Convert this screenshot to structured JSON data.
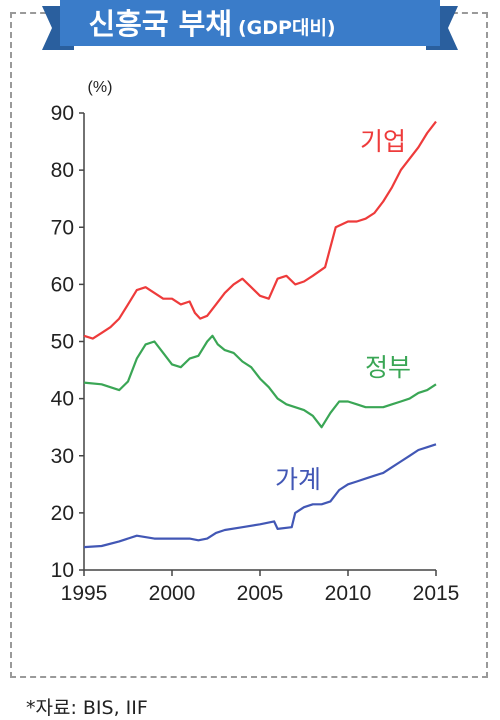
{
  "banner": {
    "title": "신흥국 부채",
    "subtitle": "(GDP대비)",
    "color": "#3a7cc9"
  },
  "source_note": "*자료: BIS, IIF",
  "chart_data": {
    "type": "line",
    "title": "신흥국 부채(GDP대비)",
    "ylabel": "(%)",
    "xlabel": "",
    "xlim": [
      1995,
      2015
    ],
    "ylim": [
      10,
      90
    ],
    "xticks": [
      1995,
      2000,
      2005,
      2010,
      2015
    ],
    "yticks": [
      10,
      20,
      30,
      40,
      50,
      60,
      70,
      80,
      90
    ],
    "grid": false,
    "legend": "inline labels",
    "series": [
      {
        "name": "기업",
        "color": "#ee3b3b",
        "points": [
          [
            1995,
            51
          ],
          [
            1995.5,
            50.5
          ],
          [
            1996,
            51.5
          ],
          [
            1996.5,
            52.5
          ],
          [
            1997,
            54
          ],
          [
            1997.5,
            56.5
          ],
          [
            1998,
            59
          ],
          [
            1998.5,
            59.5
          ],
          [
            1999,
            58.5
          ],
          [
            1999.5,
            57.5
          ],
          [
            2000,
            57.5
          ],
          [
            2000.5,
            56.5
          ],
          [
            2001,
            57
          ],
          [
            2001.3,
            55
          ],
          [
            2001.6,
            54
          ],
          [
            2002,
            54.5
          ],
          [
            2002.5,
            56.5
          ],
          [
            2003,
            58.5
          ],
          [
            2003.5,
            60
          ],
          [
            2004,
            61
          ],
          [
            2004.5,
            59.5
          ],
          [
            2005,
            58
          ],
          [
            2005.5,
            57.5
          ],
          [
            2006,
            61
          ],
          [
            2006.5,
            61.5
          ],
          [
            2007,
            60
          ],
          [
            2007.5,
            60.5
          ],
          [
            2008,
            61.5
          ],
          [
            2008.7,
            63
          ],
          [
            2009.3,
            70
          ],
          [
            2010,
            71
          ],
          [
            2010.5,
            71
          ],
          [
            2011,
            71.5
          ],
          [
            2011.5,
            72.5
          ],
          [
            2012,
            74.5
          ],
          [
            2012.5,
            77
          ],
          [
            2013,
            80
          ],
          [
            2013.5,
            82
          ],
          [
            2014,
            84
          ],
          [
            2014.5,
            86.5
          ],
          [
            2015,
            88.5
          ]
        ]
      },
      {
        "name": "정부",
        "color": "#3aa655",
        "points": [
          [
            1995,
            42.8
          ],
          [
            1996,
            42.5
          ],
          [
            1997,
            41.5
          ],
          [
            1997.5,
            43
          ],
          [
            1998,
            47
          ],
          [
            1998.5,
            49.5
          ],
          [
            1999,
            50
          ],
          [
            1999.5,
            48
          ],
          [
            2000,
            46
          ],
          [
            2000.5,
            45.5
          ],
          [
            2001,
            47
          ],
          [
            2001.5,
            47.5
          ],
          [
            2002,
            50
          ],
          [
            2002.3,
            51
          ],
          [
            2002.6,
            49.5
          ],
          [
            2003,
            48.5
          ],
          [
            2003.5,
            48
          ],
          [
            2004,
            46.5
          ],
          [
            2004.5,
            45.5
          ],
          [
            2005,
            43.5
          ],
          [
            2005.5,
            42
          ],
          [
            2006,
            40
          ],
          [
            2006.5,
            39
          ],
          [
            2007,
            38.5
          ],
          [
            2007.5,
            38
          ],
          [
            2008,
            37
          ],
          [
            2008.5,
            35
          ],
          [
            2009,
            37.5
          ],
          [
            2009.5,
            39.5
          ],
          [
            2010,
            39.5
          ],
          [
            2010.5,
            39
          ],
          [
            2011,
            38.5
          ],
          [
            2011.5,
            38.5
          ],
          [
            2012,
            38.5
          ],
          [
            2012.5,
            39
          ],
          [
            2013,
            39.5
          ],
          [
            2013.5,
            40
          ],
          [
            2014,
            41
          ],
          [
            2014.5,
            41.5
          ],
          [
            2015,
            42.5
          ]
        ]
      },
      {
        "name": "가계",
        "color": "#4257b5",
        "points": [
          [
            1995,
            14
          ],
          [
            1996,
            14.2
          ],
          [
            1997,
            15
          ],
          [
            1998,
            16
          ],
          [
            1999,
            15.5
          ],
          [
            2000,
            15.5
          ],
          [
            2001,
            15.5
          ],
          [
            2001.5,
            15.2
          ],
          [
            2002,
            15.5
          ],
          [
            2002.5,
            16.5
          ],
          [
            2003,
            17
          ],
          [
            2004,
            17.5
          ],
          [
            2005,
            18
          ],
          [
            2005.8,
            18.5
          ],
          [
            2006,
            17.2
          ],
          [
            2006.8,
            17.5
          ],
          [
            2007,
            20
          ],
          [
            2007.5,
            21
          ],
          [
            2008,
            21.5
          ],
          [
            2008.5,
            21.5
          ],
          [
            2009,
            22
          ],
          [
            2009.5,
            24
          ],
          [
            2010,
            25
          ],
          [
            2010.5,
            25.5
          ],
          [
            2011,
            26
          ],
          [
            2011.5,
            26.5
          ],
          [
            2012,
            27
          ],
          [
            2012.5,
            28
          ],
          [
            2013,
            29
          ],
          [
            2013.5,
            30
          ],
          [
            2014,
            31
          ],
          [
            2014.5,
            31.5
          ],
          [
            2015,
            32
          ]
        ]
      }
    ]
  }
}
